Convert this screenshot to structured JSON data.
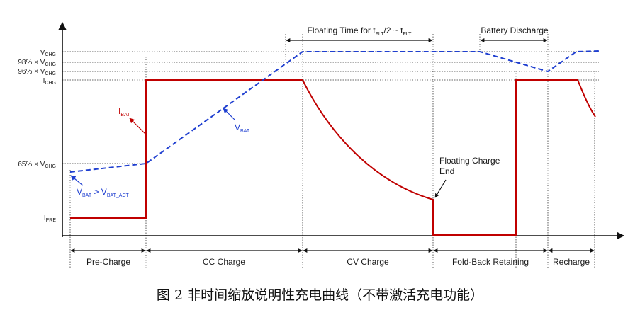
{
  "y_labels": {
    "vchg": {
      "main": "V",
      "sub": "CHG"
    },
    "p98": {
      "main": "98% × V",
      "sub": "CHG"
    },
    "p96": {
      "main": "96% × V",
      "sub": "CHG"
    },
    "ichg": {
      "main": "I",
      "sub": "CHG"
    },
    "p65": {
      "main": "65% × V",
      "sub": "CHG"
    },
    "ipre": {
      "main": "I",
      "sub": "PRE"
    }
  },
  "top_labels": {
    "floating_time": {
      "a": "Floating Time for t",
      "a_sub": "FLT",
      "b": "/2 ~ t",
      "b_sub": "FLT"
    },
    "battery_discharge": "Battery Discharge"
  },
  "curve_labels": {
    "ibat": {
      "main": "I",
      "sub": "BAT"
    },
    "vbat": {
      "main": "V",
      "sub": "BAT"
    },
    "vbat_gt": {
      "a": "V",
      "a_sub": "BAT",
      "b": " > V",
      "b_sub": "BAT_ACT"
    }
  },
  "annotation": {
    "line1": "Floating Charge",
    "line2": "End"
  },
  "phases": [
    "Pre-Charge",
    "CC Charge",
    "CV  Charge",
    "Fold-Back Retaining",
    "Recharge"
  ],
  "caption": "图 2  非时间缩放说明性充电曲线（不带激活充电功能）",
  "colors": {
    "current": "#c00000",
    "voltage": "#1f3fd0",
    "axis": "#111111"
  }
}
